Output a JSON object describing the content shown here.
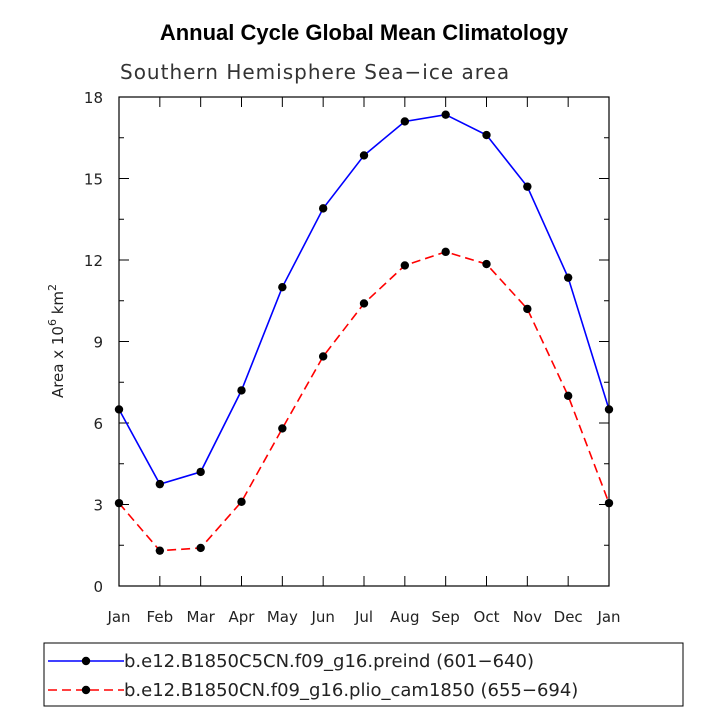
{
  "chart_data": {
    "type": "line",
    "title": "Annual Cycle Global Mean Climatology",
    "subtitle": "Southern Hemisphere Sea−ice area",
    "ylabel": "Area x 10",
    "ylabel_exp1": "6",
    "ylabel_unit": " km",
    "ylabel_exp2": "2",
    "xlabel": "",
    "categories": [
      "Jan",
      "Feb",
      "Mar",
      "Apr",
      "May",
      "Jun",
      "Jul",
      "Aug",
      "Sep",
      "Oct",
      "Nov",
      "Dec",
      "Jan"
    ],
    "ylim": [
      0,
      18
    ],
    "yticks": [
      0,
      3,
      6,
      9,
      12,
      15,
      18
    ],
    "series": [
      {
        "name": "b.e12.B1850C5CN.f09_g16.preind (601−640)",
        "color": "#0000ff",
        "dash": "solid",
        "marker": "circle",
        "values": [
          6.5,
          3.75,
          4.2,
          7.2,
          11.0,
          13.9,
          15.85,
          17.1,
          17.35,
          16.6,
          14.7,
          11.35,
          6.5
        ]
      },
      {
        "name": "b.e12.B1850CN.f09_g16.plio_cam1850 (655−694)",
        "color": "#ff0000",
        "dash": "dashed",
        "marker": "circle",
        "values": [
          3.05,
          1.3,
          1.4,
          3.1,
          5.8,
          8.45,
          10.4,
          11.8,
          12.3,
          11.85,
          10.2,
          7.0,
          3.05
        ]
      }
    ],
    "legend_position": "bottom"
  }
}
